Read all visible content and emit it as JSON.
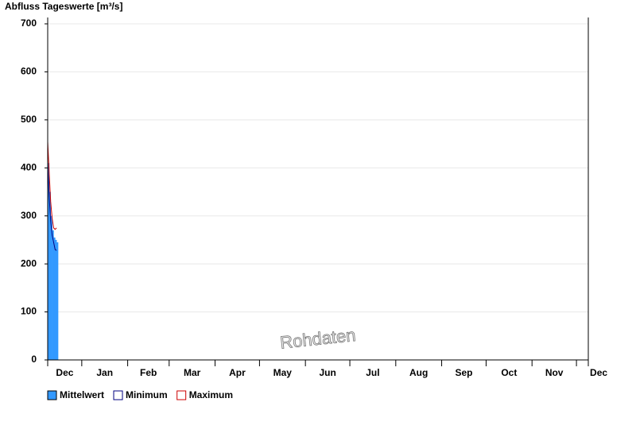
{
  "chart_data": {
    "type": "combo",
    "title": "Abfluss Tageswerte [m³/s]",
    "watermark": "Rohdaten",
    "x": [
      0,
      1,
      2,
      3,
      4,
      5,
      6
    ],
    "series": [
      {
        "name": "Mittelwert",
        "type": "bar",
        "color": "#3399ff",
        "values": [
          410,
          350,
          300,
          270,
          255,
          250,
          245
        ]
      },
      {
        "name": "Minimum",
        "type": "line",
        "color": "#000080",
        "values": [
          405,
          340,
          290,
          260,
          245,
          230,
          228
        ]
      },
      {
        "name": "Maximum",
        "type": "line",
        "color": "#cc0000",
        "values": [
          455,
          390,
          330,
          295,
          275,
          272,
          275
        ]
      }
    ],
    "xlim": [
      0,
      365
    ],
    "xticks": [
      {
        "value": 0,
        "label": "Dec"
      },
      {
        "value": 23,
        "label": "Jan"
      },
      {
        "value": 54,
        "label": "Feb"
      },
      {
        "value": 82,
        "label": "Mar"
      },
      {
        "value": 113,
        "label": "Apr"
      },
      {
        "value": 143,
        "label": "May"
      },
      {
        "value": 174,
        "label": "Jun"
      },
      {
        "value": 204,
        "label": "Jul"
      },
      {
        "value": 235,
        "label": "Aug"
      },
      {
        "value": 266,
        "label": "Sep"
      },
      {
        "value": 296,
        "label": "Oct"
      },
      {
        "value": 327,
        "label": "Nov"
      },
      {
        "value": 357,
        "label": "Dec"
      }
    ],
    "ylim": [
      0,
      700
    ],
    "yticks": [
      0,
      100,
      200,
      300,
      400,
      500,
      600,
      700
    ],
    "grid": true
  }
}
